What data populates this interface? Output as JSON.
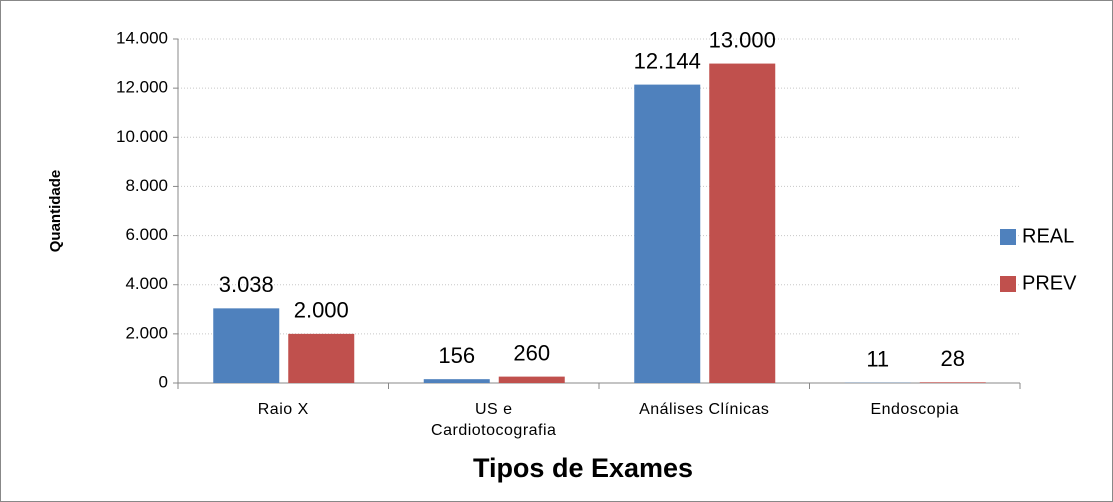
{
  "chart_data": {
    "type": "bar",
    "xlabel": "Tipos de Exames",
    "ylabel": "Quantidade",
    "categories": [
      "Raio X",
      "US e Cardiotocografia",
      "Análises Clínicas",
      "Endoscopia"
    ],
    "series": [
      {
        "name": "REAL",
        "color": "#4f81bd",
        "values": [
          3038,
          156,
          12144,
          11
        ],
        "value_labels": [
          "3.038",
          "156",
          "12.144",
          "11"
        ]
      },
      {
        "name": "PREV",
        "color": "#c0504d",
        "values": [
          2000,
          260,
          13000,
          28
        ],
        "value_labels": [
          "2.000",
          "260",
          "13.000",
          "28"
        ]
      }
    ],
    "ylim": [
      0,
      14000
    ],
    "yticks": [
      0,
      {
        "value": 2000,
        "label": "2.000"
      },
      {
        "value": 4000,
        "label": "4.000"
      },
      {
        "value": 6000,
        "label": "6.000"
      },
      {
        "value": 8000,
        "label": "8.000"
      },
      {
        "value": 10000,
        "label": "10.000"
      },
      {
        "value": 12000,
        "label": "12.000"
      },
      {
        "value": 14000,
        "label": "14.000"
      }
    ],
    "grid": true,
    "legend": "right"
  }
}
